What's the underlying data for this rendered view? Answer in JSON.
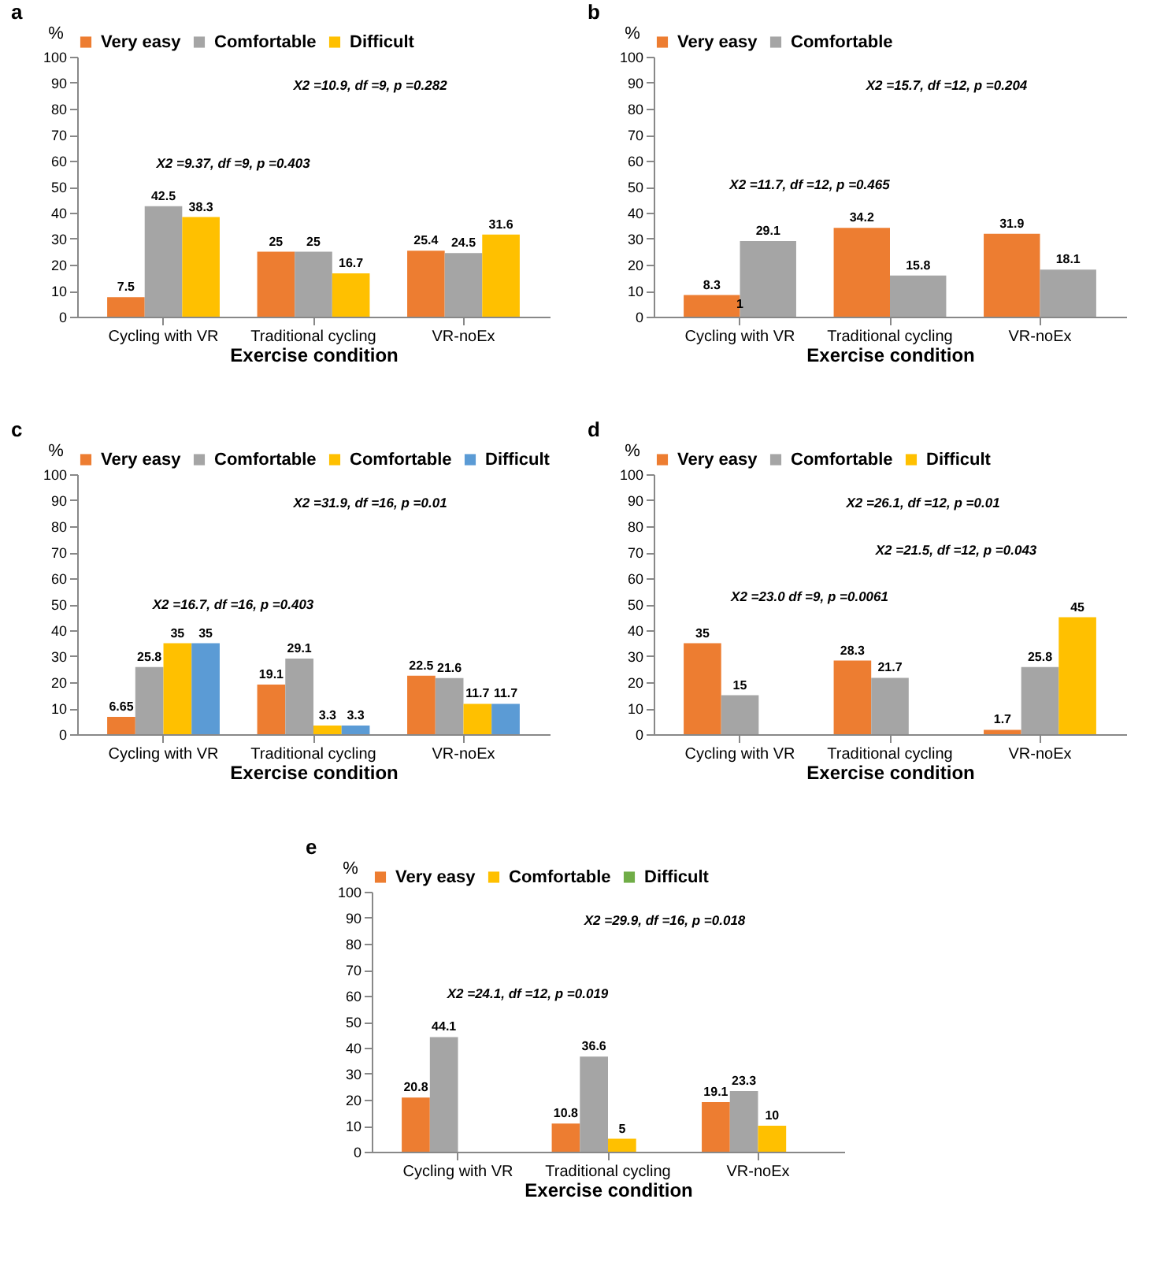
{
  "chart_data": [
    {
      "type": "bar",
      "title": "a",
      "ylabel": "%",
      "xlabel": "Exercise condition",
      "categories": [
        "Cycling with VR",
        "Traditional cycling",
        "VR-noEx"
      ],
      "ylim": [
        0,
        100
      ],
      "yticks": [
        0,
        10,
        20,
        30,
        40,
        50,
        60,
        70,
        80,
        90,
        100
      ],
      "grid": false,
      "legend": "top",
      "data_labels": true,
      "series": [
        {
          "name": "Very easy",
          "color": "#ed7d31",
          "values": [
            7.5,
            25,
            25.4
          ]
        },
        {
          "name": "Comfortable",
          "color": "#a5a5a5",
          "values": [
            42.5,
            25,
            24.5
          ]
        },
        {
          "name": "Difficult",
          "color": "#ffc000",
          "values": [
            38.3,
            16.7,
            31.6
          ]
        }
      ],
      "annotations": [
        "X2 =9.37, df =9, p =0.403",
        "X2 =10.9, df =9, p =0.282"
      ]
    },
    {
      "type": "bar",
      "title": "b",
      "ylabel": "%",
      "xlabel": "Exercise condition",
      "categories": [
        "Cycling with VR",
        "Traditional cycling",
        "VR-noEx"
      ],
      "ylim": [
        0,
        100
      ],
      "yticks": [
        0,
        10,
        20,
        30,
        40,
        50,
        60,
        70,
        80,
        90,
        100
      ],
      "grid": false,
      "legend": "top",
      "data_labels": true,
      "series": [
        {
          "name": "Very easy",
          "color": "#ed7d31",
          "values": [
            8.3,
            34.2,
            31.9
          ]
        },
        {
          "name": "Comfortable",
          "color": "#a5a5a5",
          "values": [
            29.1,
            15.8,
            18.1
          ]
        }
      ],
      "annotations": [
        "X2 =11.7, df =12, p =0.465",
        "X2 =15.7, df =12, p =0.204",
        {
          "text": "1",
          "x": "Cycling with VR",
          "y": 1
        }
      ]
    },
    {
      "type": "bar",
      "title": "c",
      "ylabel": "%",
      "xlabel": "Exercise condition",
      "categories": [
        "Cycling with VR",
        "Traditional cycling",
        "VR-noEx"
      ],
      "ylim": [
        0,
        100
      ],
      "yticks": [
        0,
        10,
        20,
        30,
        40,
        50,
        60,
        70,
        80,
        90,
        100
      ],
      "grid": false,
      "legend": "top",
      "data_labels": true,
      "series": [
        {
          "name": "Very easy",
          "color": "#ed7d31",
          "values": [
            6.65,
            19.1,
            22.5
          ]
        },
        {
          "name": "Comfortable",
          "color": "#a5a5a5",
          "values": [
            25.8,
            29.1,
            21.6
          ]
        },
        {
          "name": "Comfortable",
          "color": "#ffc000",
          "values": [
            35,
            3.3,
            11.7
          ]
        },
        {
          "name": "Difficult",
          "color": "#5b9bd5",
          "values": [
            35,
            3.3,
            11.7
          ]
        }
      ],
      "annotations": [
        "X2 =16.7, df =16, p =0.403",
        "X2 =31.9, df =16, p =0.01"
      ]
    },
    {
      "type": "bar",
      "title": "d",
      "ylabel": "%",
      "xlabel": "Exercise condition",
      "categories": [
        "Cycling with VR",
        "Traditional cycling",
        "VR-noEx"
      ],
      "ylim": [
        0,
        100
      ],
      "yticks": [
        0,
        10,
        20,
        30,
        40,
        50,
        60,
        70,
        80,
        90,
        100
      ],
      "grid": false,
      "legend": "top",
      "data_labels": true,
      "series": [
        {
          "name": "Very easy",
          "color": "#ed7d31",
          "values": [
            35,
            28.3,
            1.7
          ]
        },
        {
          "name": "Comfortable",
          "color": "#a5a5a5",
          "values": [
            15,
            21.7,
            25.8
          ]
        },
        {
          "name": "Difficult",
          "color": "#ffc000",
          "values": [
            null,
            null,
            45
          ]
        }
      ],
      "annotations": [
        "X2 =23.0 df =9, p =0.0061",
        "X2 =21.5, df =12, p =0.043",
        "X2 =26.1, df =12, p =0.01"
      ]
    },
    {
      "type": "bar",
      "title": "e",
      "ylabel": "%",
      "xlabel": "Exercise condition",
      "categories": [
        "Cycling with VR",
        "Traditional cycling",
        "VR-noEx"
      ],
      "ylim": [
        0,
        100
      ],
      "yticks": [
        0,
        10,
        20,
        30,
        40,
        50,
        60,
        70,
        80,
        90,
        100
      ],
      "grid": false,
      "legend": "top",
      "data_labels": true,
      "series": [
        {
          "name": "Very easy",
          "color": "#ed7d31",
          "values": [
            20.8,
            10.8,
            19.1
          ]
        },
        {
          "color": "#a5a5a5",
          "values": [
            44.1,
            36.6,
            23.3
          ]
        },
        {
          "name": "Comfortable",
          "color": "#ffc000",
          "values": [
            null,
            5,
            10
          ]
        },
        {
          "name": "Difficult",
          "color": "#70ad47",
          "values": [
            null,
            null,
            null
          ]
        }
      ],
      "annotations": [
        "X2 =24.1, df =12, p =0.019",
        "X2 =29.9, df =16, p =0.018"
      ]
    }
  ]
}
